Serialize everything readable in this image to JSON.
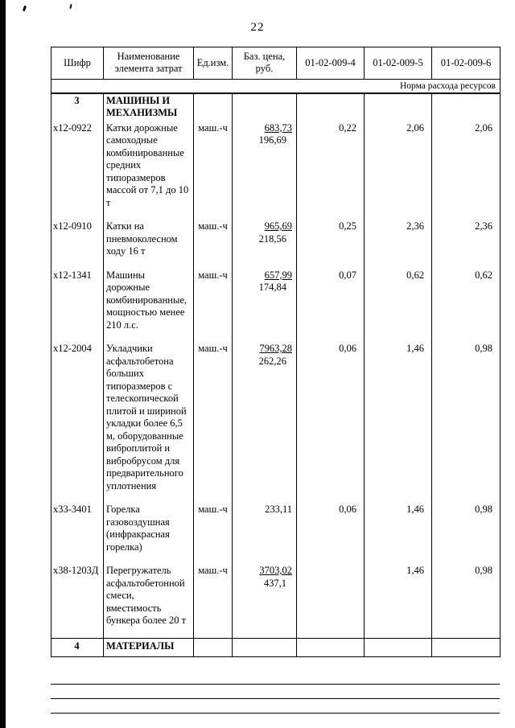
{
  "page": {
    "number": "22"
  },
  "table": {
    "headers": [
      "Шифр",
      "Наименование элемента затрат",
      "Ед.изм.",
      "Баз. цена, руб.",
      "01-02-009-4",
      "01-02-009-5",
      "01-02-009-6"
    ],
    "subheader": "Норма расхода ресурсов",
    "rows": [
      {
        "code": "3",
        "name": "МАШИНЫ И МЕХАНИЗМЫ",
        "unit": "",
        "price_main": "",
        "price_sub": "",
        "v4": "",
        "v5": "",
        "v6": "",
        "section": true
      },
      {
        "code": "х12-0922",
        "name": "Катки дорожные самоходные комбинированные средних типоразмеров массой от 7,1 до 10 т",
        "unit": "маш.-ч",
        "price_main": "683,73",
        "price_sub": "196,69",
        "v4": "0,22",
        "v5": "2,06",
        "v6": "2,06"
      },
      {
        "code": "х12-0910",
        "name": "Катки на пневмоколесном ходу 16 т",
        "unit": "маш.-ч",
        "price_main": "965,69",
        "price_sub": "218,56",
        "v4": "0,25",
        "v5": "2,36",
        "v6": "2,36"
      },
      {
        "code": "х12-1341",
        "name": "Машины дорожные комбинированные, мощностью менее 210 л.с.",
        "unit": "маш.-ч",
        "price_main": "657,99",
        "price_sub": "174,84",
        "v4": "0,07",
        "v5": "0,62",
        "v6": "0,62"
      },
      {
        "code": "х12-2004",
        "name": "Укладчики асфальтобетона больших типоразмеров с телескопической плитой и шириной укладки более 6,5 м, оборудованные виброплитой и вибробрусом для предварительного уплотнения",
        "unit": "маш.-ч",
        "price_main": "7963,28",
        "price_sub": "262,26",
        "v4": "0,06",
        "v5": "1,46",
        "v6": "0,98"
      },
      {
        "code": "х33-3401",
        "name": "Горелка газовоздушная (инфракрасная горелка)",
        "unit": "маш.-ч",
        "price_main": "233,11",
        "price_sub": "",
        "v4": "0,06",
        "v5": "1,46",
        "v6": "0,98"
      },
      {
        "code": "х38-1203Д",
        "name": "Перегружатель асфальтобетонной смеси, вместимость бункера более 20 т",
        "unit": "маш.-ч",
        "price_main": "3703,02",
        "price_sub": "437,1",
        "v4": "",
        "v5": "1,46",
        "v6": "0,98"
      },
      {
        "code": "4",
        "name": "МАТЕРИАЛЫ",
        "unit": "",
        "price_main": "",
        "price_sub": "",
        "v4": "",
        "v5": "",
        "v6": "",
        "section": true
      }
    ]
  }
}
